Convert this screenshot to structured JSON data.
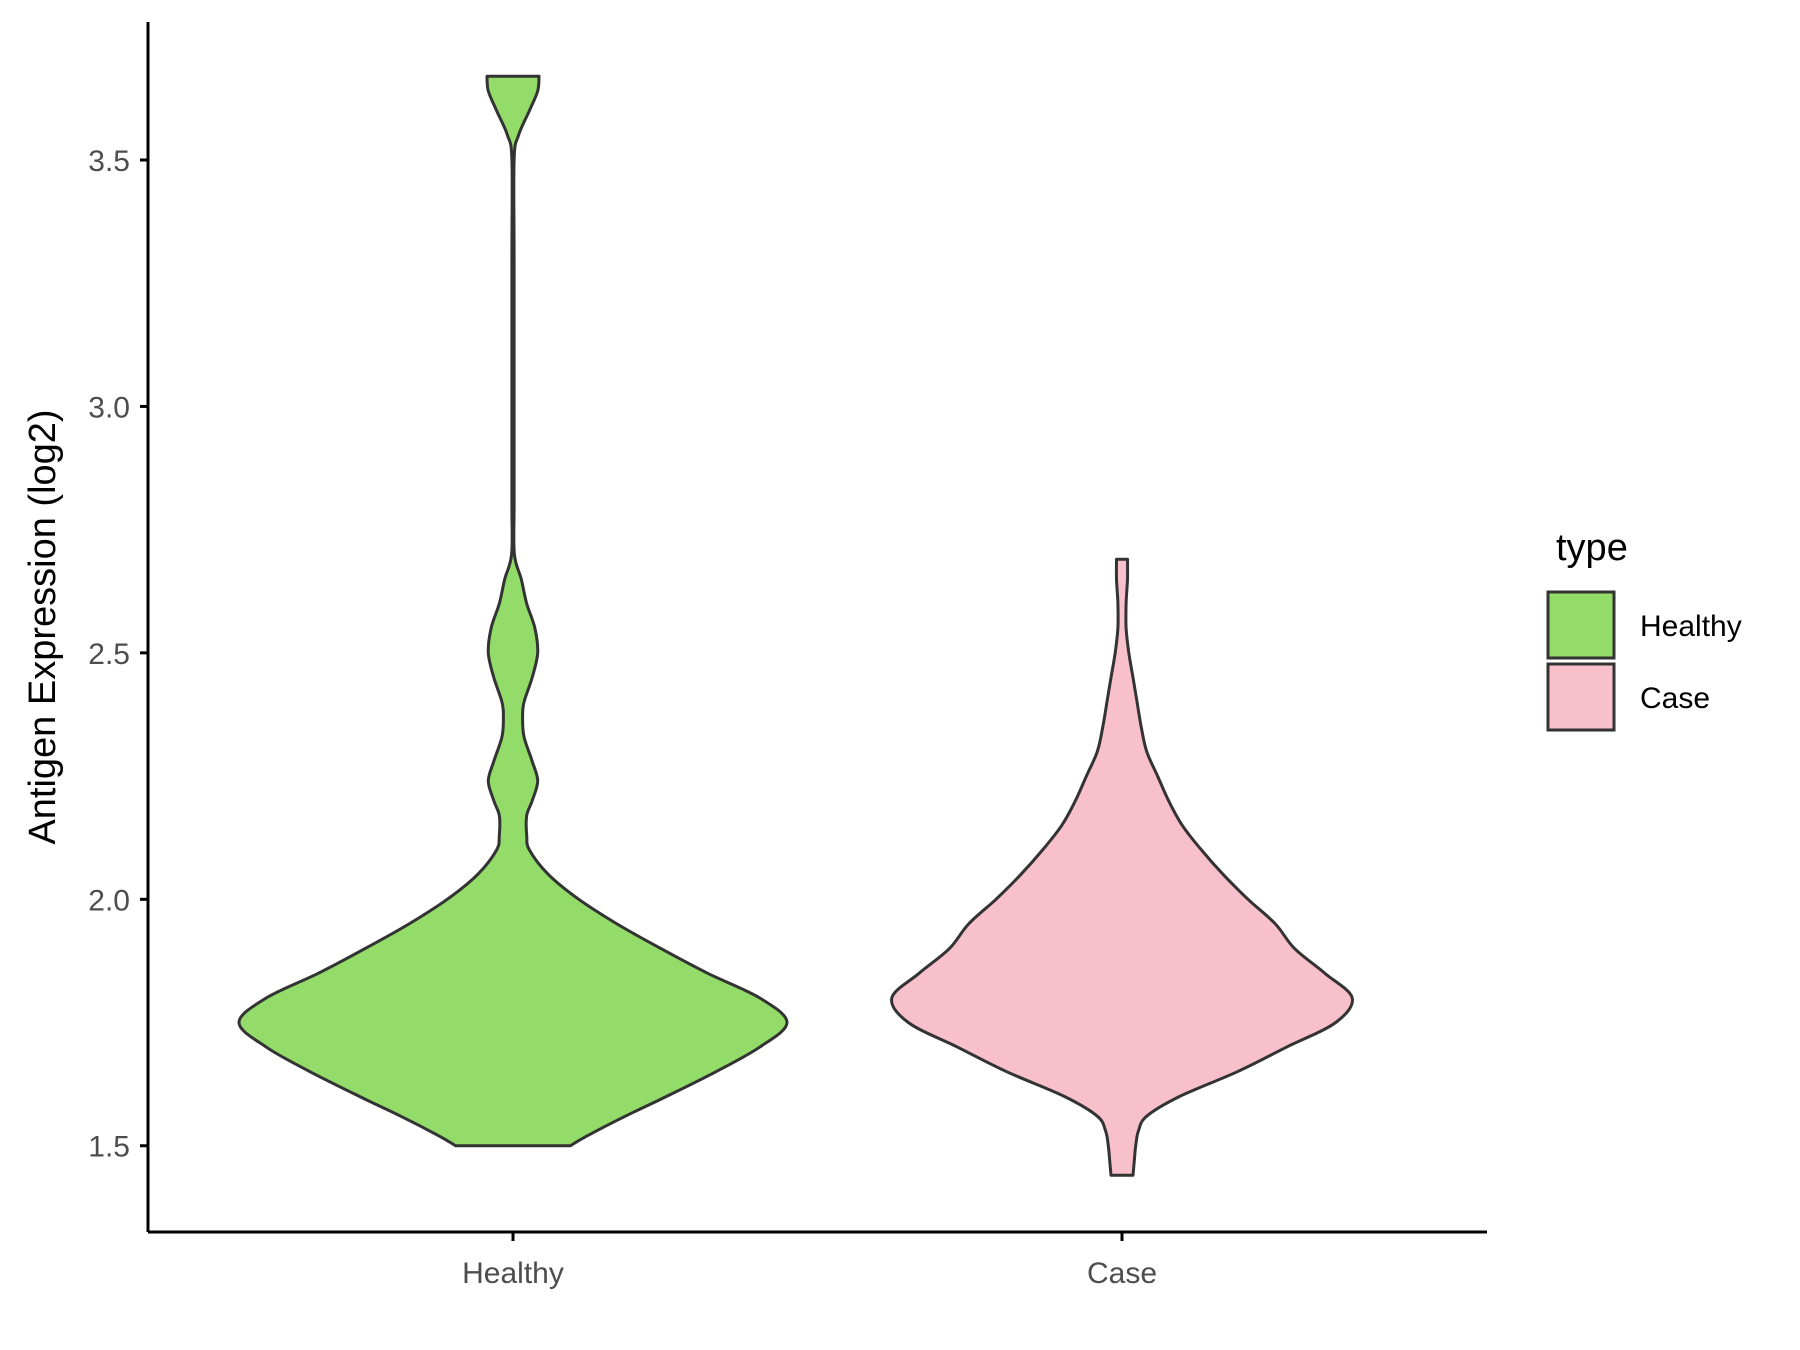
{
  "chart_data": {
    "type": "violin",
    "title": "",
    "xlabel": "",
    "ylabel": "Antigen Expression (log2)",
    "ylim": [
      1.325,
      3.78
    ],
    "y_ticks": [
      "1.5",
      "2.0",
      "2.5",
      "3.0",
      "3.5"
    ],
    "y_tick_values": [
      1.5,
      2.0,
      2.5,
      3.0,
      3.5
    ],
    "categories": [
      "Healthy",
      "Case"
    ],
    "grid": false,
    "legend": {
      "title": "type",
      "position": "right",
      "entries": [
        {
          "label": "Healthy",
          "color": "#93DC6A"
        },
        {
          "label": "Case",
          "color": "#F8C0CB"
        }
      ]
    },
    "series": [
      {
        "name": "Healthy",
        "color": "#93DC6A",
        "min": 1.5,
        "max": 3.67,
        "density_profile": [
          [
            1.5,
            0.21
          ],
          [
            1.52,
            0.27
          ],
          [
            1.56,
            0.41
          ],
          [
            1.6,
            0.56
          ],
          [
            1.65,
            0.74
          ],
          [
            1.7,
            0.9
          ],
          [
            1.75,
            1.0
          ],
          [
            1.8,
            0.9
          ],
          [
            1.85,
            0.71
          ],
          [
            1.9,
            0.54
          ],
          [
            1.95,
            0.38
          ],
          [
            2.0,
            0.24
          ],
          [
            2.05,
            0.13
          ],
          [
            2.1,
            0.06
          ],
          [
            2.13,
            0.05
          ],
          [
            2.17,
            0.05
          ],
          [
            2.2,
            0.07
          ],
          [
            2.24,
            0.09
          ],
          [
            2.28,
            0.07
          ],
          [
            2.33,
            0.04
          ],
          [
            2.37,
            0.035
          ],
          [
            2.4,
            0.04
          ],
          [
            2.45,
            0.07
          ],
          [
            2.5,
            0.09
          ],
          [
            2.55,
            0.08
          ],
          [
            2.6,
            0.05
          ],
          [
            2.65,
            0.03
          ],
          [
            2.7,
            0.005
          ],
          [
            2.8,
            0.004
          ],
          [
            3.0,
            0.004
          ],
          [
            3.3,
            0.004
          ],
          [
            3.5,
            0.004
          ],
          [
            3.55,
            0.02
          ],
          [
            3.6,
            0.06
          ],
          [
            3.64,
            0.09
          ],
          [
            3.67,
            0.095
          ]
        ]
      },
      {
        "name": "Case",
        "color": "#F8C0CB",
        "min": 1.44,
        "max": 2.69,
        "density_profile": [
          [
            1.44,
            0.04
          ],
          [
            1.47,
            0.045
          ],
          [
            1.5,
            0.05
          ],
          [
            1.53,
            0.06
          ],
          [
            1.56,
            0.09
          ],
          [
            1.6,
            0.21
          ],
          [
            1.65,
            0.42
          ],
          [
            1.7,
            0.6
          ],
          [
            1.75,
            0.78
          ],
          [
            1.8,
            0.84
          ],
          [
            1.85,
            0.74
          ],
          [
            1.9,
            0.63
          ],
          [
            1.95,
            0.56
          ],
          [
            2.0,
            0.46
          ],
          [
            2.05,
            0.37
          ],
          [
            2.1,
            0.29
          ],
          [
            2.15,
            0.22
          ],
          [
            2.2,
            0.17
          ],
          [
            2.25,
            0.13
          ],
          [
            2.3,
            0.09
          ],
          [
            2.35,
            0.07
          ],
          [
            2.4,
            0.055
          ],
          [
            2.45,
            0.04
          ],
          [
            2.5,
            0.025
          ],
          [
            2.55,
            0.015
          ],
          [
            2.6,
            0.015
          ],
          [
            2.65,
            0.02
          ],
          [
            2.69,
            0.02
          ]
        ]
      }
    ]
  }
}
